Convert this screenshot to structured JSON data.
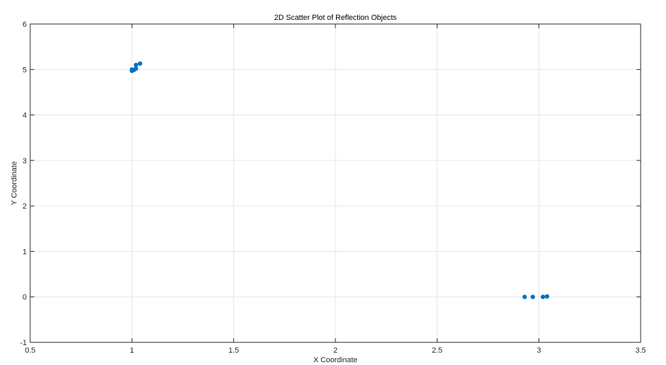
{
  "chart_data": {
    "type": "scatter",
    "title": "2D Scatter Plot of Reflection Objects",
    "xlabel": "X Coordinate",
    "ylabel": "Y Coordinate",
    "xlim": [
      0.5,
      3.5
    ],
    "ylim": [
      -1,
      6
    ],
    "xticks": [
      "0.5",
      "1",
      "1.5",
      "2",
      "2.5",
      "3",
      "3.5"
    ],
    "xtick_values": [
      0.5,
      1,
      1.5,
      2,
      2.5,
      3,
      3.5
    ],
    "yticks": [
      "-1",
      "0",
      "1",
      "2",
      "3",
      "4",
      "5",
      "6"
    ],
    "ytick_values": [
      -1,
      0,
      1,
      2,
      3,
      4,
      5,
      6
    ],
    "grid": true,
    "marker_color": "#0072BD",
    "series": [
      {
        "points": [
          {
            "x": 1.0,
            "y": 5.0
          },
          {
            "x": 1.0,
            "y": 4.97
          },
          {
            "x": 1.01,
            "y": 4.99
          },
          {
            "x": 1.02,
            "y": 5.02
          },
          {
            "x": 1.02,
            "y": 5.1
          },
          {
            "x": 1.04,
            "y": 5.13
          },
          {
            "x": 2.93,
            "y": 0.0
          },
          {
            "x": 2.97,
            "y": 0.0
          },
          {
            "x": 3.02,
            "y": 0.0
          },
          {
            "x": 3.04,
            "y": 0.01
          }
        ]
      }
    ]
  }
}
